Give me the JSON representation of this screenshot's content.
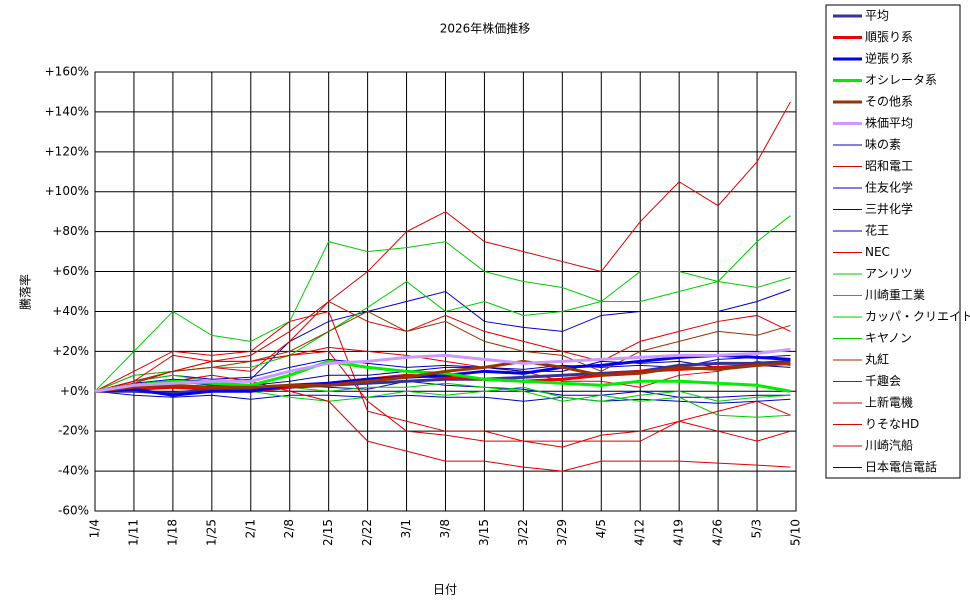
{
  "chart_data": {
    "type": "line",
    "title": "2026年株価推移",
    "x_label": "日付",
    "y_label": "騰落率",
    "x": [
      0,
      7,
      14,
      21,
      28,
      35,
      42,
      49,
      56,
      63,
      70,
      77,
      84,
      91,
      98,
      105,
      112,
      119,
      125
    ],
    "xlim": [
      0,
      126
    ],
    "xticks": [
      {
        "value": 0,
        "label": "1/4"
      },
      {
        "value": 7,
        "label": "1/11"
      },
      {
        "value": 14,
        "label": "1/18"
      },
      {
        "value": 21,
        "label": "1/25"
      },
      {
        "value": 28,
        "label": "2/1"
      },
      {
        "value": 35,
        "label": "2/8"
      },
      {
        "value": 42,
        "label": "2/15"
      },
      {
        "value": 49,
        "label": "2/22"
      },
      {
        "value": 56,
        "label": "3/1"
      },
      {
        "value": 63,
        "label": "3/8"
      },
      {
        "value": 70,
        "label": "3/15"
      },
      {
        "value": 77,
        "label": "3/22"
      },
      {
        "value": 84,
        "label": "3/29"
      },
      {
        "value": 91,
        "label": "4/5"
      },
      {
        "value": 98,
        "label": "4/12"
      },
      {
        "value": 105,
        "label": "4/19"
      },
      {
        "value": 112,
        "label": "4/26"
      },
      {
        "value": 119,
        "label": "5/3"
      },
      {
        "value": 126,
        "label": "5/10"
      }
    ],
    "ylim": [
      -60,
      160
    ],
    "yticks": [
      {
        "value": -60,
        "label": "-60%"
      },
      {
        "value": -40,
        "label": "-40%"
      },
      {
        "value": -20,
        "label": "-20%"
      },
      {
        "value": 0,
        "label": "+0%"
      },
      {
        "value": 20,
        "label": "+20%"
      },
      {
        "value": 40,
        "label": "+40%"
      },
      {
        "value": 60,
        "label": "+60%"
      },
      {
        "value": 80,
        "label": "+80%"
      },
      {
        "value": 100,
        "label": "+100%"
      },
      {
        "value": 120,
        "label": "+120%"
      },
      {
        "value": 140,
        "label": "+140%"
      },
      {
        "value": 160,
        "label": "+160%"
      }
    ],
    "grid": true,
    "series": [
      {
        "name": "平均",
        "color": "#333399",
        "width": 3,
        "values": [
          0,
          0,
          -1,
          1,
          1,
          2,
          3,
          4,
          5,
          6,
          6,
          7,
          8,
          9,
          10,
          13,
          14,
          14,
          15
        ]
      },
      {
        "name": "順張り系",
        "color": "#ee0000",
        "width": 3,
        "values": [
          0,
          1,
          2,
          1,
          0,
          2,
          4,
          6,
          8,
          7,
          6,
          5,
          6,
          8,
          10,
          11,
          12,
          13,
          14
        ]
      },
      {
        "name": "逆張り系",
        "color": "#0000ee",
        "width": 3,
        "values": [
          0,
          1,
          -2,
          0,
          0,
          3,
          4,
          6,
          7,
          8,
          10,
          9,
          12,
          13,
          15,
          17,
          18,
          17,
          16
        ]
      },
      {
        "name": "オシレータ系",
        "color": "#00ee00",
        "width": 3,
        "values": [
          0,
          3,
          5,
          4,
          3,
          8,
          15,
          12,
          10,
          9,
          6,
          5,
          4,
          3,
          5,
          5,
          4,
          3,
          0
        ]
      },
      {
        "name": "その他系",
        "color": "#993300",
        "width": 3,
        "values": [
          0,
          2,
          3,
          2,
          2,
          3,
          3,
          5,
          7,
          10,
          12,
          15,
          12,
          8,
          9,
          12,
          11,
          13,
          14
        ]
      },
      {
        "name": "株価平均",
        "color": "#cc99ff",
        "width": 3,
        "values": [
          0,
          3,
          4,
          5,
          5,
          10,
          14,
          15,
          17,
          18,
          16,
          14,
          15,
          16,
          17,
          18,
          18,
          19,
          21
        ]
      },
      {
        "name": "味の素",
        "color": "#0000cc",
        "width": 1,
        "values": [
          0,
          5,
          8,
          6,
          7,
          12,
          16,
          14,
          12,
          13,
          12,
          11,
          13,
          12,
          13,
          12,
          16,
          17,
          18
        ]
      },
      {
        "name": "昭和電工",
        "color": "#dd0000",
        "width": 1,
        "values": [
          0,
          8,
          10,
          15,
          18,
          30,
          45,
          60,
          80,
          90,
          75,
          70,
          65,
          60,
          85,
          105,
          93,
          115,
          145
        ]
      },
      {
        "name": "住友化学",
        "color": "#0000cc",
        "width": 1,
        "values": [
          0,
          -2,
          -3,
          -2,
          -4,
          -2,
          -2,
          -3,
          -2,
          -3,
          -3,
          -5,
          -3,
          -5,
          -4,
          -5,
          -6,
          -5,
          -4
        ]
      },
      {
        "name": "三井化学",
        "color": "#0000cc",
        "width": 1,
        "values": [
          0,
          4,
          6,
          5,
          6,
          25,
          35,
          40,
          45,
          50,
          35,
          32,
          30,
          38,
          40,
          40,
          40,
          45,
          51
        ]
      },
      {
        "name": "花王",
        "color": "#0000cc",
        "width": 1,
        "values": [
          0,
          1,
          2,
          1,
          0,
          3,
          2,
          1,
          5,
          3,
          2,
          1,
          -2,
          -2,
          0,
          -3,
          -3,
          -2,
          -2
        ]
      },
      {
        "name": "NEC",
        "color": "#dd0000",
        "width": 1,
        "values": [
          0,
          5,
          10,
          12,
          10,
          25,
          45,
          35,
          30,
          38,
          30,
          25,
          20,
          15,
          25,
          30,
          35,
          38,
          30
        ]
      },
      {
        "name": "アンリツ",
        "color": "#00cc00",
        "width": 1,
        "values": [
          0,
          20,
          40,
          28,
          25,
          35,
          75,
          70,
          72,
          75,
          60,
          55,
          52,
          45,
          60,
          60,
          55,
          75,
          88
        ]
      },
      {
        "name": "川崎重工業",
        "color": "#00cc00",
        "width": 1,
        "values": [
          0,
          8,
          10,
          12,
          12,
          18,
          30,
          42,
          55,
          40,
          45,
          38,
          40,
          45,
          45,
          50,
          55,
          52,
          57
        ]
      },
      {
        "name": "カッパ・クリエイト",
        "color": "#00cc00",
        "width": 1,
        "values": [
          0,
          3,
          5,
          3,
          2,
          2,
          0,
          2,
          2,
          4,
          2,
          0,
          -5,
          -2,
          -5,
          -3,
          -12,
          -13,
          -12
        ]
      },
      {
        "name": "キヤノン",
        "color": "#00cc00",
        "width": 1,
        "values": [
          0,
          5,
          8,
          5,
          0,
          -3,
          -5,
          -3,
          0,
          -2,
          0,
          2,
          -3,
          -5,
          -2,
          0,
          -5,
          -3,
          -2
        ]
      },
      {
        "name": "丸紅",
        "color": "#993300",
        "width": 1,
        "values": [
          0,
          5,
          10,
          12,
          15,
          20,
          30,
          40,
          30,
          35,
          25,
          20,
          18,
          10,
          20,
          25,
          30,
          28,
          33
        ]
      },
      {
        "name": "千趣会",
        "color": "#dd0000",
        "width": 1,
        "values": [
          0,
          10,
          20,
          18,
          20,
          35,
          40,
          -10,
          -15,
          -20,
          -20,
          -25,
          -25,
          -25,
          -25,
          -15,
          -20,
          -25,
          -20
        ]
      },
      {
        "name": "上新電機",
        "color": "#dd0000",
        "width": 1,
        "values": [
          0,
          5,
          18,
          15,
          15,
          18,
          22,
          20,
          18,
          15,
          12,
          10,
          5,
          5,
          2,
          8,
          10,
          15,
          13
        ]
      },
      {
        "name": "りそなHD",
        "color": "#dd0000",
        "width": 1,
        "values": [
          0,
          3,
          5,
          8,
          5,
          0,
          -5,
          -25,
          -30,
          -35,
          -35,
          -38,
          -40,
          -35,
          -35,
          -35,
          -36,
          -37,
          -38
        ]
      },
      {
        "name": "川崎汽船",
        "color": "#dd0000",
        "width": 1,
        "values": [
          0,
          4,
          10,
          15,
          15,
          18,
          20,
          -5,
          -20,
          -22,
          -25,
          -25,
          -28,
          -22,
          -20,
          -15,
          -10,
          -5,
          -12
        ]
      },
      {
        "name": "日本電信電話",
        "color": "#000099",
        "width": 1,
        "values": [
          0,
          2,
          5,
          3,
          3,
          5,
          8,
          8,
          10,
          12,
          12,
          10,
          10,
          15,
          14,
          15,
          12,
          13,
          12
        ]
      }
    ]
  }
}
